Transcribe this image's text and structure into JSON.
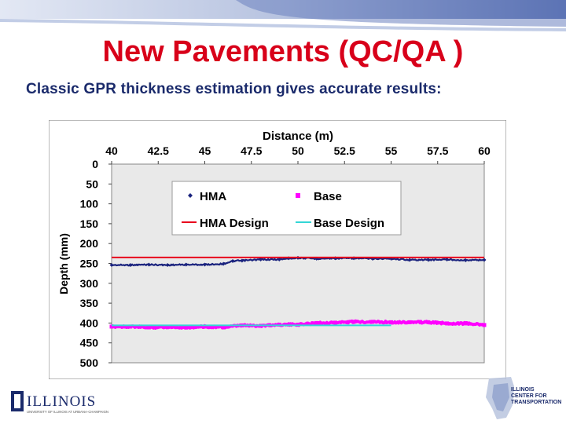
{
  "slide": {
    "title": "New Pavements (QC/QA )",
    "subtitle": "Classic GPR thickness estimation gives accurate results:"
  },
  "footer": {
    "left_logo_text": "ILLINOIS",
    "left_logo_subtext": "UNIVERSITY OF ILLINOIS AT URBANA-CHAMPAIGN",
    "right_logo_text": [
      "ILLINOIS",
      "CENTER FOR",
      "TRANSPORTATION"
    ]
  },
  "colors": {
    "title": "#d8001a",
    "subtitle": "#1a2a6b",
    "hma": "#1a237e",
    "base": "#ff00ff",
    "hma_design": "#e8001c",
    "base_design": "#33d6d6",
    "plot_bg": "#e9e9e9"
  },
  "chart_data": {
    "type": "line",
    "title": "",
    "xlabel": "Distance (m)",
    "ylabel": "Depth (mm)",
    "xlim": [
      40,
      60
    ],
    "ylim": [
      0,
      500
    ],
    "y_inverted": true,
    "x_axis_position": "top",
    "xticks": [
      "40",
      "42.5",
      "45",
      "47.5",
      "50",
      "52.5",
      "55",
      "57.5",
      "60"
    ],
    "yticks": [
      "0",
      "50",
      "100",
      "150",
      "200",
      "250",
      "300",
      "350",
      "400",
      "450",
      "500"
    ],
    "grid": false,
    "legend_position": "top-center",
    "legend": [
      "HMA",
      "Base",
      "HMA Design",
      "Base Design"
    ],
    "series": [
      {
        "name": "HMA",
        "x": [
          40,
          41,
          42,
          43,
          44,
          45,
          46,
          46.5,
          47,
          48,
          49,
          49.5,
          50,
          51,
          52,
          53,
          54,
          55,
          56,
          57,
          58,
          59,
          60
        ],
        "y": [
          254,
          254,
          253,
          254,
          253,
          253,
          251,
          244,
          243,
          240,
          240,
          237,
          236,
          238,
          237,
          237,
          238,
          238,
          241,
          241,
          240,
          242,
          241
        ]
      },
      {
        "name": "Base",
        "x": [
          40,
          41,
          42,
          43,
          44,
          45,
          46,
          47,
          48,
          49,
          50,
          51,
          52,
          53,
          54,
          55,
          56,
          57,
          58,
          59,
          60
        ],
        "y": [
          409,
          409,
          411,
          410,
          411,
          409,
          411,
          406,
          407,
          404,
          404,
          400,
          399,
          397,
          397,
          398,
          398,
          398,
          401,
          401,
          405
        ]
      },
      {
        "name": "HMA Design",
        "x": [
          40,
          60
        ],
        "y": [
          235,
          235
        ]
      },
      {
        "name": "Base Design",
        "x": [
          40,
          55
        ],
        "y": [
          406,
          406
        ]
      }
    ]
  }
}
